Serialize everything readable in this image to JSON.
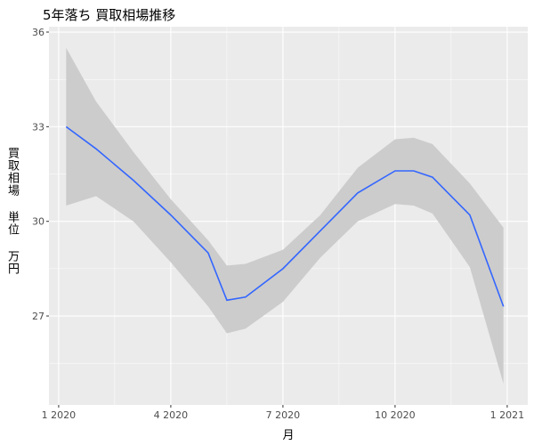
{
  "chart_data": {
    "type": "line",
    "title": "5年落ち 買取相場推移",
    "x_label": "月",
    "y_label": "買取相場 単位 万円",
    "x": [
      0.2,
      1,
      2,
      3,
      4,
      4.5,
      5,
      6,
      7,
      8,
      9,
      9.5,
      10,
      11,
      11.9
    ],
    "values": [
      33.0,
      32.3,
      31.3,
      30.2,
      29.0,
      27.5,
      27.6,
      28.5,
      29.7,
      30.9,
      31.6,
      31.6,
      31.4,
      30.2,
      27.3
    ],
    "upper": [
      35.5,
      33.8,
      32.2,
      30.7,
      29.4,
      28.6,
      28.65,
      29.1,
      30.2,
      31.7,
      32.6,
      32.65,
      32.45,
      31.2,
      29.8
    ],
    "lower": [
      30.5,
      30.8,
      30.0,
      28.7,
      27.3,
      26.45,
      26.6,
      27.45,
      28.85,
      30.0,
      30.55,
      30.5,
      30.25,
      28.55,
      24.85
    ],
    "color": "#3366FF",
    "band_color": "#cccccc",
    "xlim": [
      -0.26,
      12.55
    ],
    "ylim": [
      24.18,
      36.17
    ],
    "xticks": [
      {
        "value": 0,
        "label": "1 2020"
      },
      {
        "value": 3,
        "label": "4 2020"
      },
      {
        "value": 6,
        "label": "7 2020"
      },
      {
        "value": 9,
        "label": "10 2020"
      },
      {
        "value": 12,
        "label": "1 2021"
      }
    ],
    "yticks": [
      27,
      30,
      33,
      36
    ],
    "grid": true
  }
}
